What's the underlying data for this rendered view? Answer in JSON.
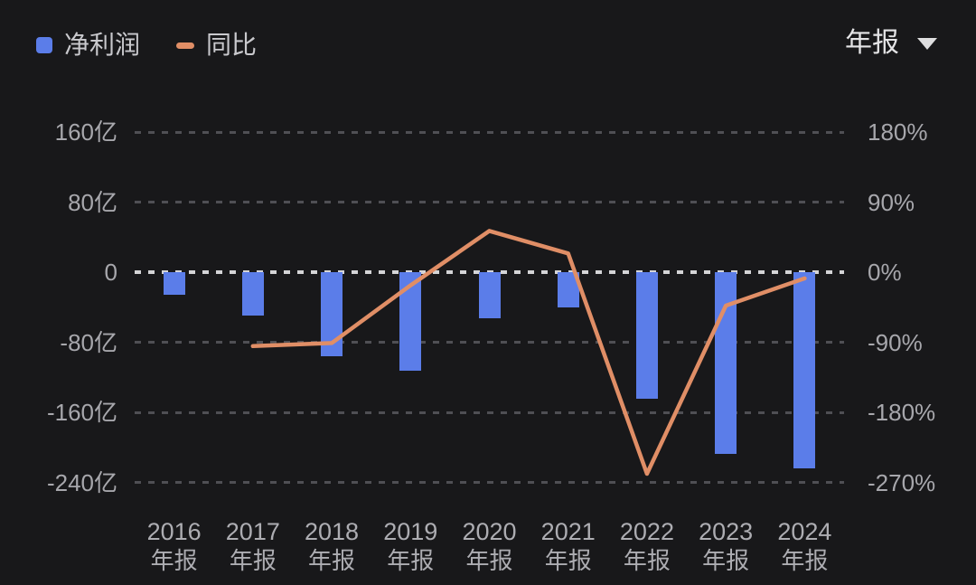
{
  "legend": {
    "items": [
      {
        "label": "净利润",
        "type": "bar",
        "color": "#5b7de9"
      },
      {
        "label": "同比",
        "type": "line",
        "color": "#e08e66"
      }
    ]
  },
  "period_selector": {
    "label": "年报",
    "icon": "chevron-down"
  },
  "chart_data": {
    "type": "bar+line combo",
    "categories": [
      "2016",
      "2017",
      "2018",
      "2019",
      "2020",
      "2021",
      "2022",
      "2023",
      "2024"
    ],
    "category_sublabel": "年报",
    "series": [
      {
        "name": "净利润",
        "type": "bar",
        "axis": "left",
        "unit": "亿",
        "color": "#5b7de9",
        "values": [
          -26,
          -50,
          -96,
          -113,
          -53,
          -40,
          -144,
          -207,
          -224
        ]
      },
      {
        "name": "同比",
        "type": "line",
        "axis": "right",
        "unit": "%",
        "color": "#e08e66",
        "values": [
          null,
          -95,
          -91,
          -17,
          53,
          24,
          -259,
          -43,
          -8
        ]
      }
    ],
    "left_axis": {
      "ticks": [
        "160亿",
        "80亿",
        "0",
        "-80亿",
        "-160亿",
        "-240亿"
      ],
      "values": [
        160,
        80,
        0,
        -80,
        -160,
        -240
      ],
      "range": [
        -240,
        160
      ]
    },
    "right_axis": {
      "ticks": [
        "180%",
        "90%",
        "0%",
        "-90%",
        "-180%",
        "-270%"
      ],
      "values": [
        180,
        90,
        0,
        -90,
        -180,
        -270
      ],
      "range": [
        -270,
        180
      ]
    },
    "grid": {
      "style": "dashed",
      "orientation": "horizontal",
      "zero_line_highlighted": true
    },
    "legend_position": "top-left"
  },
  "colors": {
    "background": "#18181a",
    "bar": "#5b7de9",
    "line": "#e08e66",
    "axis_text": "#a7a7ac",
    "legend_text": "#c9c9cd",
    "grid": "#4f4f54",
    "zero_line": "#d4d4d6"
  }
}
